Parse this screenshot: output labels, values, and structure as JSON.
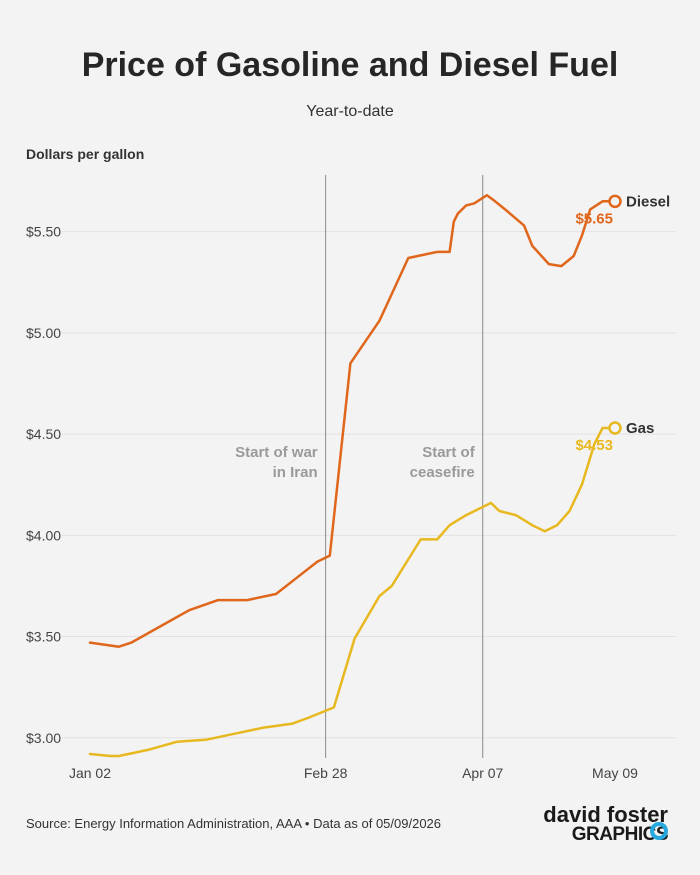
{
  "chart_data": {
    "type": "line",
    "title": "Price of Gasoline and Diesel Fuel",
    "subtitle": "Year-to-date",
    "ylabel": "Dollars per gallon",
    "ylim": [
      2.9,
      5.78
    ],
    "y_ticks": [
      {
        "value": 3.0,
        "label": "$3.00"
      },
      {
        "value": 3.5,
        "label": "$3.50"
      },
      {
        "value": 4.0,
        "label": "$4.00"
      },
      {
        "value": 4.5,
        "label": "$4.50"
      },
      {
        "value": 5.0,
        "label": "$5.00"
      },
      {
        "value": 5.5,
        "label": "$5.50"
      }
    ],
    "x_range": [
      "2026-01-02",
      "2026-05-09"
    ],
    "x_ticks": [
      {
        "date": "2026-01-02",
        "label": "Jan 02"
      },
      {
        "date": "2026-02-28",
        "label": "Feb 28"
      },
      {
        "date": "2026-04-07",
        "label": "Apr 07"
      },
      {
        "date": "2026-05-09",
        "label": "May 09"
      }
    ],
    "grid": true,
    "events": [
      {
        "date": "2026-02-28",
        "label_lines": [
          "Start of war",
          "in Iran"
        ]
      },
      {
        "date": "2026-04-07",
        "label_lines": [
          "Start of",
          "ceasefire"
        ]
      }
    ],
    "series": [
      {
        "name": "Diesel",
        "color": "#e0661b",
        "end_label": "$5.65",
        "points": [
          [
            "2026-01-02",
            3.47
          ],
          [
            "2026-01-09",
            3.45
          ],
          [
            "2026-01-12",
            3.47
          ],
          [
            "2026-01-19",
            3.55
          ],
          [
            "2026-01-26",
            3.63
          ],
          [
            "2026-02-02",
            3.68
          ],
          [
            "2026-02-09",
            3.68
          ],
          [
            "2026-02-16",
            3.71
          ],
          [
            "2026-02-21",
            3.79
          ],
          [
            "2026-02-26",
            3.87
          ],
          [
            "2026-03-01",
            3.9
          ],
          [
            "2026-03-06",
            4.85
          ],
          [
            "2026-03-13",
            5.06
          ],
          [
            "2026-03-20",
            5.37
          ],
          [
            "2026-03-27",
            5.4
          ],
          [
            "2026-03-30",
            5.4
          ],
          [
            "2026-03-31",
            5.55
          ],
          [
            "2026-04-01",
            5.59
          ],
          [
            "2026-04-03",
            5.63
          ],
          [
            "2026-04-05",
            5.64
          ],
          [
            "2026-04-08",
            5.68
          ],
          [
            "2026-04-10",
            5.65
          ],
          [
            "2026-04-13",
            5.6
          ],
          [
            "2026-04-17",
            5.53
          ],
          [
            "2026-04-19",
            5.43
          ],
          [
            "2026-04-23",
            5.34
          ],
          [
            "2026-04-26",
            5.33
          ],
          [
            "2026-04-29",
            5.38
          ],
          [
            "2026-05-01",
            5.48
          ],
          [
            "2026-05-03",
            5.61
          ],
          [
            "2026-05-06",
            5.65
          ],
          [
            "2026-05-09",
            5.65
          ]
        ]
      },
      {
        "name": "Gas",
        "color": "#e8b820",
        "end_label": "$4.53",
        "points": [
          [
            "2026-01-02",
            2.92
          ],
          [
            "2026-01-07",
            2.91
          ],
          [
            "2026-01-09",
            2.91
          ],
          [
            "2026-01-16",
            2.94
          ],
          [
            "2026-01-23",
            2.98
          ],
          [
            "2026-01-30",
            2.99
          ],
          [
            "2026-02-06",
            3.02
          ],
          [
            "2026-02-13",
            3.05
          ],
          [
            "2026-02-20",
            3.07
          ],
          [
            "2026-02-24",
            3.1
          ],
          [
            "2026-03-02",
            3.15
          ],
          [
            "2026-03-07",
            3.49
          ],
          [
            "2026-03-13",
            3.7
          ],
          [
            "2026-03-16",
            3.75
          ],
          [
            "2026-03-23",
            3.98
          ],
          [
            "2026-03-27",
            3.98
          ],
          [
            "2026-03-30",
            4.05
          ],
          [
            "2026-04-03",
            4.1
          ],
          [
            "2026-04-07",
            4.14
          ],
          [
            "2026-04-09",
            4.16
          ],
          [
            "2026-04-11",
            4.12
          ],
          [
            "2026-04-15",
            4.1
          ],
          [
            "2026-04-19",
            4.05
          ],
          [
            "2026-04-22",
            4.02
          ],
          [
            "2026-04-25",
            4.05
          ],
          [
            "2026-04-28",
            4.12
          ],
          [
            "2026-05-01",
            4.25
          ],
          [
            "2026-05-04",
            4.45
          ],
          [
            "2026-05-06",
            4.53
          ],
          [
            "2026-05-09",
            4.53
          ]
        ]
      }
    ]
  },
  "source": "Source: Energy Information Administration, AAA • Data as of 05/09/2026",
  "logo": {
    "line1": "david foster",
    "line2": "GRAPHICS",
    "accent": "#27a9e0"
  }
}
